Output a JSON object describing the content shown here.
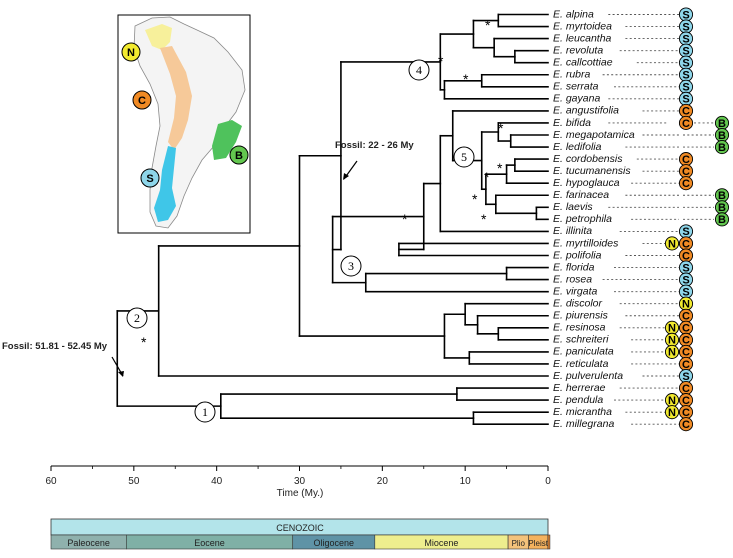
{
  "colors": {
    "N": "#f2ea2f",
    "C": "#f08a24",
    "S": "#8ed6ea",
    "B": "#63c74f",
    "cenozoic": "#b3e4ea",
    "paleocene": "#8fb1ad",
    "eocene": "#7fb0a6",
    "oligocene": "#5f93a6",
    "miocene": "#eeee8e",
    "plio": "#f3c27b",
    "pleist": "#f4b25e",
    "recent": "#e8842f"
  },
  "taxa": [
    {
      "name": "E. alpina",
      "regions": [
        "S"
      ]
    },
    {
      "name": "E. myrtoidea",
      "regions": [
        "S"
      ]
    },
    {
      "name": "E. leucantha",
      "regions": [
        "S"
      ]
    },
    {
      "name": "E. revoluta",
      "regions": [
        "S"
      ]
    },
    {
      "name": "E. callcottiae",
      "regions": [
        "S"
      ]
    },
    {
      "name": "E. rubra",
      "regions": [
        "S"
      ]
    },
    {
      "name": "E. serrata",
      "regions": [
        "S"
      ]
    },
    {
      "name": "E. gayana",
      "regions": [
        "S"
      ]
    },
    {
      "name": "E. angustifolia",
      "regions": [
        "C"
      ]
    },
    {
      "name": "E. bifida",
      "regions": [
        "C",
        "B"
      ]
    },
    {
      "name": "E. megapotamica",
      "regions": [
        "B"
      ]
    },
    {
      "name": "E. ledifolia",
      "regions": [
        "B"
      ]
    },
    {
      "name": "E. cordobensis",
      "regions": [
        "C"
      ]
    },
    {
      "name": "E. tucumanensis",
      "regions": [
        "C"
      ]
    },
    {
      "name": "E. hypoglauca",
      "regions": [
        "C"
      ]
    },
    {
      "name": "E. farinacea",
      "regions": [
        "B"
      ]
    },
    {
      "name": "E. laevis",
      "regions": [
        "B"
      ]
    },
    {
      "name": "E. petrophila",
      "regions": [
        "B"
      ]
    },
    {
      "name": "E. illinita",
      "regions": [
        "S"
      ]
    },
    {
      "name": "E. myrtilloides",
      "regions": [
        "N",
        "C"
      ]
    },
    {
      "name": "E. polifolia",
      "regions": [
        "C"
      ]
    },
    {
      "name": "E. florida",
      "regions": [
        "S"
      ]
    },
    {
      "name": "E. rosea",
      "regions": [
        "S"
      ]
    },
    {
      "name": "E. virgata",
      "regions": [
        "S"
      ]
    },
    {
      "name": "E. discolor",
      "regions": [
        "N"
      ]
    },
    {
      "name": "E. piurensis",
      "regions": [
        "C"
      ]
    },
    {
      "name": "E. resinosa",
      "regions": [
        "N",
        "C"
      ]
    },
    {
      "name": "E. schreiteri",
      "regions": [
        "N",
        "C"
      ]
    },
    {
      "name": "E. paniculata",
      "regions": [
        "N",
        "C"
      ]
    },
    {
      "name": "E. reticulata",
      "regions": [
        "C"
      ]
    },
    {
      "name": "E. pulverulenta",
      "regions": [
        "S"
      ]
    },
    {
      "name": "E. herrerae",
      "regions": [
        "C"
      ]
    },
    {
      "name": "E. pendula",
      "regions": [
        "N",
        "C"
      ]
    },
    {
      "name": "E. micrantha",
      "regions": [
        "N",
        "C"
      ]
    },
    {
      "name": "E. millegrana",
      "regions": [
        "C"
      ]
    }
  ],
  "axis": {
    "label": "Time (My.)",
    "range": [
      60,
      0
    ],
    "ticks": [
      60,
      50,
      40,
      30,
      20,
      10,
      0
    ]
  },
  "fossils": [
    {
      "label": "Fossil: 51.81 - 52.45 My",
      "age": 52
    },
    {
      "label": "Fossil: 22 - 26 My",
      "age": 24
    }
  ],
  "node_numbers": [
    "1",
    "2",
    "3",
    "4",
    "5"
  ],
  "stars": [
    "*"
  ],
  "map_regions": [
    {
      "code": "N",
      "label": "N"
    },
    {
      "code": "C",
      "label": "C"
    },
    {
      "code": "B",
      "label": "B"
    },
    {
      "code": "S",
      "label": "S"
    }
  ],
  "timescale": {
    "era": "CENOZOIC",
    "epochs": [
      {
        "name": "Paleocene",
        "start": 66,
        "end": 56,
        "color_key": "paleocene"
      },
      {
        "name": "Eocene",
        "start": 56,
        "end": 33.9,
        "color_key": "eocene"
      },
      {
        "name": "Oligocene",
        "start": 33.9,
        "end": 23,
        "color_key": "oligocene"
      },
      {
        "name": "Miocene",
        "start": 23,
        "end": 5.3,
        "color_key": "miocene"
      },
      {
        "name": "Plio",
        "start": 5.3,
        "end": 2.6,
        "color_key": "plio"
      },
      {
        "name": "Pleist",
        "start": 2.6,
        "end": 0.01,
        "color_key": "pleist"
      },
      {
        "name": "",
        "start": 0.01,
        "end": 0,
        "color_key": "recent"
      }
    ]
  }
}
